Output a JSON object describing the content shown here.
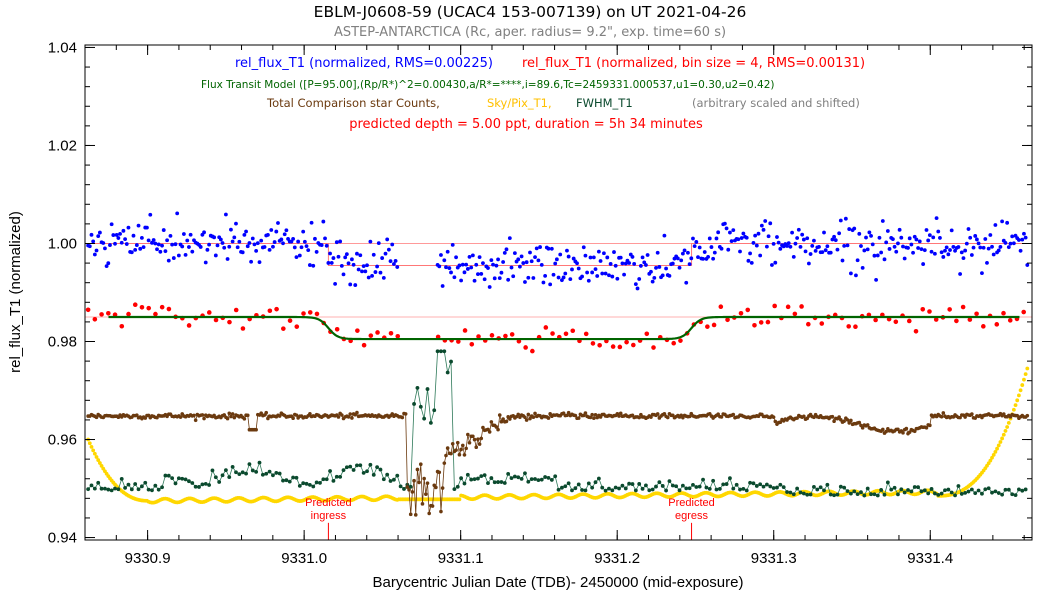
{
  "chart_data": {
    "type": "scatter",
    "title": "EBLM-J0608-59 (UCAC4 153-007139)   on UT 2021-04-26",
    "subtitle": "ASTEP-ANTARCTICA (Rc, aper. radius= 9.2\", exp. time=60 s)",
    "xlabel": "Barycentric Julian Date (TDB)- 2450000 (mid-exposure)",
    "ylabel": "rel_flux_T1 (normalized)",
    "xlim": [
      9330.86,
      9331.465
    ],
    "ylim": [
      0.9395,
      1.0405
    ],
    "x_ticks": [
      9330.9,
      9331.0,
      9331.1,
      9331.2,
      9331.3,
      9331.4
    ],
    "x_tick_labels": [
      "9330.9",
      "9331.0",
      "9331.1",
      "9331.2",
      "9331.3",
      "9331.4"
    ],
    "y_ticks": [
      0.94,
      0.96,
      0.98,
      1.0,
      1.02,
      1.04
    ],
    "y_tick_labels": [
      "0.94",
      "0.96",
      "0.98",
      "1.00",
      "1.02",
      "1.04"
    ],
    "grid": false,
    "legend": [
      {
        "text": "rel_flux_T1 (normalized, RMS=0.00225)",
        "color": "#0000ff"
      },
      {
        "text": "rel_flux_T1 (normalized, bin size = 4, RMS=0.00131)",
        "color": "#ff0000"
      },
      {
        "text": "Flux Transit Model ([P=95.00],(Rp/R*)^2=0.00430,a/R*=****,i=89.6,Tc=2459331.000537,u1=0.30,u2=0.42)",
        "color": "#006400"
      },
      {
        "text": "Total Comparison star Counts,",
        "color": "#6b3a0f"
      },
      {
        "text": "Sky/Pix_T1,",
        "color": "#ffc000"
      },
      {
        "text": "FWHM_T1",
        "color": "#0b4a2e"
      },
      {
        "text": "(arbitrary scaled and shifted)",
        "color": "#808080"
      }
    ],
    "depth_note": "predicted depth =  5.00 ppt,  duration =  5h 34 minutes",
    "annotations": [
      {
        "text_lines": [
          "Predicted",
          "ingress"
        ],
        "x": 9331.0155
      },
      {
        "text_lines": [
          "Predicted",
          "egress"
        ],
        "x": 9331.2475
      }
    ],
    "model_params": {
      "baseline": 0.985,
      "depth": 0.0045,
      "ingress_x": 9331.0155,
      "egress_x": 9331.2475,
      "model_fit_start": 9330.875,
      "model_fit_end": 9331.458
    },
    "series": [
      {
        "name": "rel_flux_T1 (normalized, RMS=0.00225)",
        "color": "#0000ff",
        "marker": "dot",
        "description": "unbinned normalized flux, offset +0.015, x from 9330.862 to 9331.462, mean ~1.000 outside and ~0.995 inside transit, scatter ~0.0022",
        "x_range": [
          9330.862,
          9331.462
        ],
        "offset": 0.015
      },
      {
        "name": "rel_flux_T1 (normalized, bin size = 4, RMS=0.00131)",
        "color": "#ff0000",
        "marker": "dot",
        "description": "binned normalized flux around 0.985 baseline, ~0.9805 in transit, scatter ~0.0013"
      },
      {
        "name": "Flux Transit Model",
        "color": "#006400",
        "marker": "line",
        "description": "transit model: 0.985 baseline, 0.9805 in transit, x 9330.875 to 9331.458"
      },
      {
        "name": "Total Comparison star Counts",
        "color": "#6b3a0f",
        "marker": "dot-line",
        "description": "~0.965 level with dip near 9331.07-9331.11 down to ~0.944"
      },
      {
        "name": "Sky/Pix_T1",
        "color": "#ffd700",
        "marker": "dot",
        "description": "starts 0.960 at 9330.862, drops to ~0.9475 by 9330.9, flat ~0.948-0.949, rises to 0.9745 at 9331.462"
      },
      {
        "name": "FWHM_T1",
        "color": "#0b4a2e",
        "marker": "dot-line",
        "description": "~0.949-0.953 level with spike to ~0.978 near 9331.09"
      }
    ],
    "reference_lines": [
      {
        "y": 1.0,
        "color": "#ff9999",
        "description": "upper reference line for unbinned series"
      },
      {
        "y": 0.985,
        "color": "#ffb0b0",
        "description": "baseline reference line"
      }
    ]
  }
}
